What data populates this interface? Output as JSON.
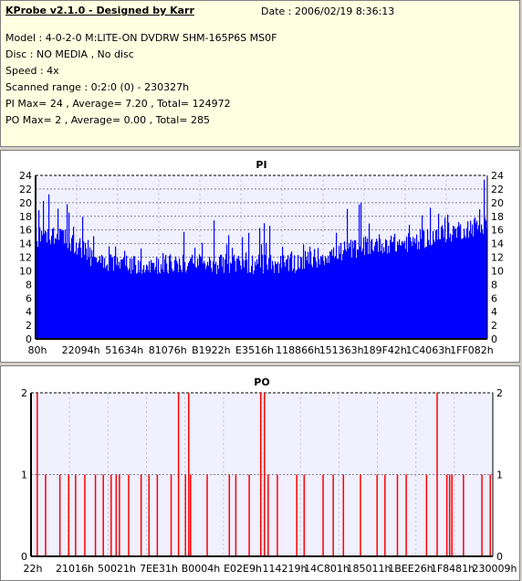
{
  "header": {
    "title": "KProbe v2.1.0 - Designed by Karr",
    "date": "Date : 2006/02/19 8:36:13",
    "model": "Model : 4-0-2-0 M:LITE-ON DVDRW SHM-165P6S MS0F",
    "disc": "Disc : NO MEDIA , No disc",
    "speed": "Speed : 4x",
    "scanned_range": "Scanned range : 0:2:0 (0) - 230327h",
    "pi_stats": "PI Max= 24 , Average= 7.20 , Total= 124972",
    "po_stats": "PO Max= 2 , Average= 0.00 , Total= 285"
  },
  "colors": {
    "pi_bars": "#0000ff",
    "po_bars": "#ff0000",
    "background": "#d4d0c8",
    "plot_background": "#f0f0ff",
    "header_background": "#ffffe1"
  },
  "chart_data": [
    {
      "type": "bar",
      "title": "PI",
      "xlabel": "",
      "ylabel": "",
      "ylim": [
        0,
        24
      ],
      "yticks": [
        0,
        2,
        4,
        6,
        8,
        10,
        12,
        14,
        16,
        18,
        20,
        22,
        24
      ],
      "xtick_labels": [
        "80h",
        "22094h",
        "51634h",
        "81076h",
        "B1922h",
        "E3516h",
        "118866h",
        "151363h",
        "189F42h",
        "1C4063h",
        "1FF082h"
      ],
      "grid": true,
      "x_range": [
        "80h",
        "230327h"
      ],
      "profile": [
        {
          "segment": 0,
          "typical": 15,
          "peak": 22
        },
        {
          "segment": 1,
          "typical": 15,
          "peak": 21
        },
        {
          "segment": 2,
          "typical": 12,
          "peak": 17
        },
        {
          "segment": 3,
          "typical": 11,
          "peak": 15
        },
        {
          "segment": 4,
          "typical": 11,
          "peak": 16
        },
        {
          "segment": 5,
          "typical": 11,
          "peak": 16
        },
        {
          "segment": 6,
          "typical": 11,
          "peak": 18
        },
        {
          "segment": 7,
          "typical": 11,
          "peak": 16
        },
        {
          "segment": 8,
          "typical": 11,
          "peak": 18
        },
        {
          "segment": 9,
          "typical": 11,
          "peak": 16
        },
        {
          "segment": 10,
          "typical": 12,
          "peak": 19
        },
        {
          "segment": 11,
          "typical": 13,
          "peak": 21
        },
        {
          "segment": 12,
          "typical": 14,
          "peak": 19
        },
        {
          "segment": 13,
          "typical": 14,
          "peak": 19
        },
        {
          "segment": 14,
          "typical": 15,
          "peak": 20
        },
        {
          "segment": 15,
          "typical": 16,
          "peak": 22
        },
        {
          "segment": 16,
          "typical": 17,
          "peak": 24
        }
      ]
    },
    {
      "type": "bar",
      "title": "PO",
      "xlabel": "",
      "ylabel": "",
      "ylim": [
        0,
        2
      ],
      "yticks": [
        0,
        1,
        2
      ],
      "xtick_labels": [
        "22h",
        "21016h",
        "50021h",
        "7EE31h",
        "B0004h",
        "E02E9h",
        "114219h",
        "14C801h",
        "185011h",
        "1BEE26h",
        "1F8481h",
        "230009h"
      ],
      "grid": true,
      "x_range": [
        "22h",
        "230009h"
      ],
      "events": [
        {
          "pos": 0.012,
          "value": 2
        },
        {
          "pos": 0.03,
          "value": 1
        },
        {
          "pos": 0.061,
          "value": 1
        },
        {
          "pos": 0.08,
          "value": 1
        },
        {
          "pos": 0.095,
          "value": 1
        },
        {
          "pos": 0.115,
          "value": 1
        },
        {
          "pos": 0.138,
          "value": 1
        },
        {
          "pos": 0.155,
          "value": 1
        },
        {
          "pos": 0.172,
          "value": 1
        },
        {
          "pos": 0.183,
          "value": 1
        },
        {
          "pos": 0.19,
          "value": 1
        },
        {
          "pos": 0.21,
          "value": 1
        },
        {
          "pos": 0.237,
          "value": 1
        },
        {
          "pos": 0.254,
          "value": 1
        },
        {
          "pos": 0.272,
          "value": 1
        },
        {
          "pos": 0.302,
          "value": 1
        },
        {
          "pos": 0.318,
          "value": 2
        },
        {
          "pos": 0.333,
          "value": 1
        },
        {
          "pos": 0.34,
          "value": 2
        },
        {
          "pos": 0.344,
          "value": 1
        },
        {
          "pos": 0.38,
          "value": 1
        },
        {
          "pos": 0.428,
          "value": 1
        },
        {
          "pos": 0.442,
          "value": 1
        },
        {
          "pos": 0.471,
          "value": 1
        },
        {
          "pos": 0.496,
          "value": 2
        },
        {
          "pos": 0.504,
          "value": 2
        },
        {
          "pos": 0.512,
          "value": 1
        },
        {
          "pos": 0.532,
          "value": 1
        },
        {
          "pos": 0.574,
          "value": 1
        },
        {
          "pos": 0.59,
          "value": 1
        },
        {
          "pos": 0.631,
          "value": 1
        },
        {
          "pos": 0.653,
          "value": 1
        },
        {
          "pos": 0.675,
          "value": 1
        },
        {
          "pos": 0.712,
          "value": 1
        },
        {
          "pos": 0.748,
          "value": 1
        },
        {
          "pos": 0.765,
          "value": 1
        },
        {
          "pos": 0.792,
          "value": 1
        },
        {
          "pos": 0.811,
          "value": 1
        },
        {
          "pos": 0.855,
          "value": 1
        },
        {
          "pos": 0.878,
          "value": 2
        },
        {
          "pos": 0.899,
          "value": 1
        },
        {
          "pos": 0.905,
          "value": 1
        },
        {
          "pos": 0.91,
          "value": 1
        },
        {
          "pos": 0.935,
          "value": 1
        },
        {
          "pos": 0.975,
          "value": 1
        },
        {
          "pos": 0.993,
          "value": 1
        }
      ]
    }
  ]
}
